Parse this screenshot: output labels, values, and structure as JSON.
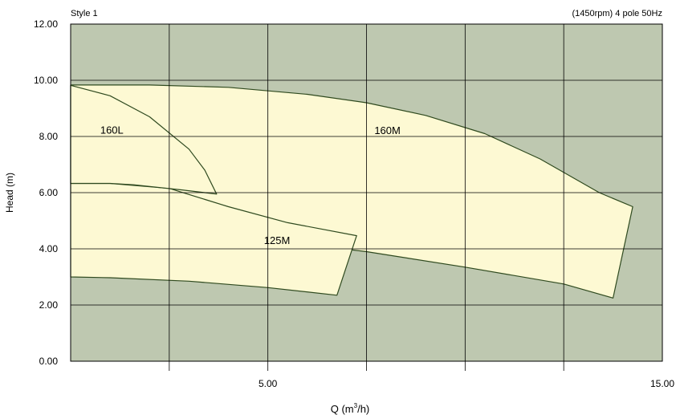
{
  "header": {
    "left": "Style 1",
    "right": "(1450rpm) 4 pole 50Hz"
  },
  "colors": {
    "plot_bg": "#bec8b0",
    "region_fill": "#fdf9d3",
    "curve": "#2f4a1f",
    "grid": "#000000"
  },
  "chart_data": {
    "type": "area",
    "xlabel": "Q (m",
    "xlabel_sup": "3",
    "xlabel_tail": "/h)",
    "ylabel": "Head (m)",
    "xlim": [
      0,
      15
    ],
    "ylim": [
      0,
      12
    ],
    "x_grid": [
      2.5,
      5,
      7.5,
      10,
      12.5
    ],
    "y_grid": [
      2,
      4,
      6,
      8,
      10
    ],
    "x_tick_labels": [
      {
        "x": 5,
        "label": "5.00"
      },
      {
        "x": 15,
        "label": "15.00"
      }
    ],
    "y_tick_labels": [
      {
        "y": 0,
        "label": "0.00"
      },
      {
        "y": 2,
        "label": "2.00"
      },
      {
        "y": 4,
        "label": "4.00"
      },
      {
        "y": 6,
        "label": "6.00"
      },
      {
        "y": 8,
        "label": "8.00"
      },
      {
        "y": 10,
        "label": "10.00"
      },
      {
        "y": 12,
        "label": "12.00"
      }
    ],
    "regions": [
      {
        "name": "160M",
        "label_pos": [
          7.7,
          8.2
        ],
        "points": [
          [
            0,
            9.83
          ],
          [
            2,
            9.83
          ],
          [
            4,
            9.75
          ],
          [
            6,
            9.5
          ],
          [
            7.5,
            9.2
          ],
          [
            9,
            8.75
          ],
          [
            10.5,
            8.1
          ],
          [
            11.9,
            7.2
          ],
          [
            13.4,
            6
          ],
          [
            14.25,
            5.5
          ],
          [
            13.75,
            2.25
          ],
          [
            12.5,
            2.75
          ],
          [
            10,
            3.35
          ],
          [
            7.5,
            3.9
          ],
          [
            5.25,
            4.28
          ],
          [
            4.5,
            4.5
          ],
          [
            3.5,
            4.95
          ],
          [
            2,
            5.65
          ],
          [
            0,
            6.33
          ]
        ]
      },
      {
        "name": "125M",
        "label_pos": [
          4.9,
          4.28
        ],
        "points": [
          [
            0,
            6.33
          ],
          [
            1,
            6.33
          ],
          [
            2.5,
            6.15
          ],
          [
            4,
            5.5
          ],
          [
            5.5,
            4.93
          ],
          [
            7.25,
            4.47
          ],
          [
            6.75,
            2.35
          ],
          [
            5,
            2.62
          ],
          [
            3,
            2.85
          ],
          [
            1,
            2.97
          ],
          [
            0,
            3
          ]
        ]
      },
      {
        "name": "160L",
        "label_pos": [
          0.75,
          8.22
        ],
        "points": [
          [
            0,
            9.82
          ],
          [
            1,
            9.45
          ],
          [
            2,
            8.7
          ],
          [
            3,
            7.55
          ],
          [
            3.4,
            6.8
          ],
          [
            3.7,
            5.95
          ],
          [
            2.8,
            6.1
          ],
          [
            1.6,
            6.28
          ],
          [
            1,
            6.33
          ],
          [
            0,
            6.33
          ]
        ]
      }
    ]
  }
}
